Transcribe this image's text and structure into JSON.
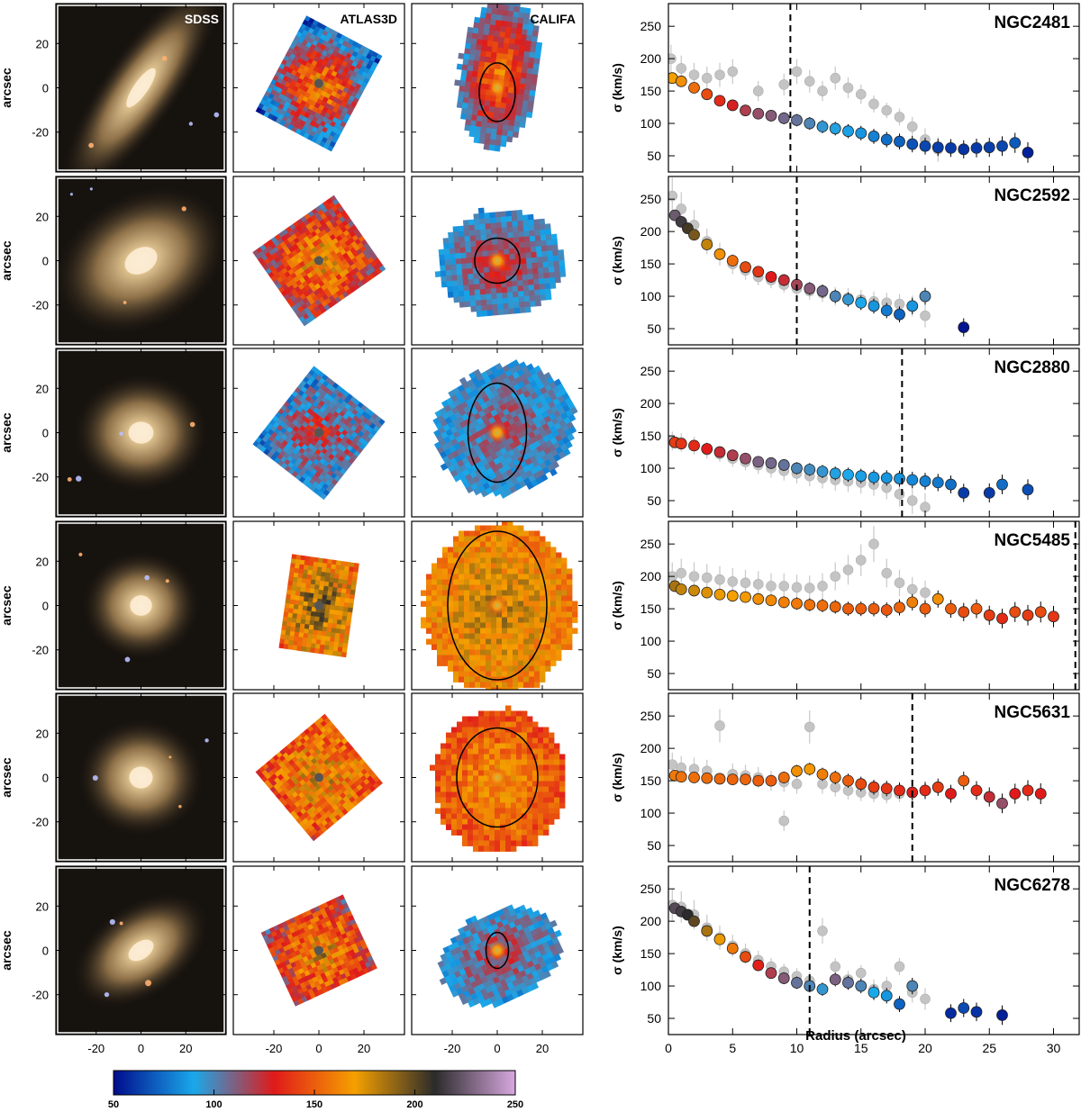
{
  "figure": {
    "column_titles": {
      "sdss": "SDSS",
      "atlas3d": "ATLAS3D",
      "califa": "CALIFA"
    },
    "row_ylabel": "arcsec",
    "map_xticks": [
      -20,
      0,
      20
    ],
    "map_yticks": [
      20,
      0,
      -20
    ],
    "colorbar": {
      "min": 50,
      "max": 250,
      "tick_labels": [
        "50",
        "100",
        "150",
        "200",
        "250"
      ],
      "stops": [
        "#000c8c",
        "#1aa8ea",
        "#e01a1a",
        "#f5a000",
        "#2b2b2b",
        "#d8a8e0"
      ]
    }
  },
  "chart_data": {
    "type": "scatter",
    "xlabel": "Radius (arcsec)",
    "ylabel": "σ (km/s)",
    "xlim": [
      0,
      32
    ],
    "ylim": [
      25,
      285
    ],
    "xticks": [
      0,
      5,
      10,
      15,
      20,
      25,
      30
    ],
    "yticks": [
      50,
      100,
      150,
      200,
      250
    ],
    "panels": [
      {
        "galaxy": "NGC2481",
        "vline": 9.5,
        "atlas3d": [
          [
            0.3,
            170
          ],
          [
            1,
            165
          ],
          [
            2,
            155
          ],
          [
            3,
            145
          ],
          [
            4,
            135
          ],
          [
            5,
            128
          ],
          [
            6,
            120
          ],
          [
            7,
            115
          ],
          [
            8,
            112
          ],
          [
            9,
            108
          ],
          [
            10,
            105
          ],
          [
            11,
            100
          ],
          [
            12,
            95
          ],
          [
            13,
            92
          ],
          [
            14,
            88
          ],
          [
            15,
            85
          ],
          [
            16,
            80
          ],
          [
            17,
            75
          ],
          [
            18,
            72
          ],
          [
            19,
            68
          ],
          [
            20,
            65
          ],
          [
            21,
            63
          ],
          [
            22,
            62
          ],
          [
            23,
            60
          ],
          [
            24,
            62
          ],
          [
            25,
            63
          ],
          [
            26,
            65
          ],
          [
            27,
            70
          ],
          [
            28,
            55
          ]
        ],
        "califa": [
          [
            0.2,
            200
          ],
          [
            1,
            185
          ],
          [
            2,
            175
          ],
          [
            3,
            170
          ],
          [
            4,
            175
          ],
          [
            5,
            180
          ],
          [
            7,
            150
          ],
          [
            9,
            160
          ],
          [
            10,
            180
          ],
          [
            11,
            165
          ],
          [
            12,
            150
          ],
          [
            13,
            170
          ],
          [
            14,
            155
          ],
          [
            15,
            145
          ],
          [
            16,
            130
          ],
          [
            17,
            120
          ],
          [
            18,
            110
          ],
          [
            19,
            95
          ],
          [
            20,
            75
          ],
          [
            21,
            60
          ]
        ]
      },
      {
        "galaxy": "NGC2592",
        "vline": 10,
        "atlas3d": [
          [
            0.5,
            225
          ],
          [
            1,
            215
          ],
          [
            1.5,
            205
          ],
          [
            2,
            195
          ],
          [
            3,
            180
          ],
          [
            4,
            165
          ],
          [
            5,
            155
          ],
          [
            6,
            145
          ],
          [
            7,
            138
          ],
          [
            8,
            130
          ],
          [
            9,
            125
          ],
          [
            10,
            118
          ],
          [
            11,
            112
          ],
          [
            12,
            108
          ],
          [
            13,
            100
          ],
          [
            14,
            95
          ],
          [
            15,
            90
          ],
          [
            16,
            85
          ],
          [
            17,
            78
          ],
          [
            18,
            72
          ],
          [
            19,
            85
          ],
          [
            20,
            100
          ],
          [
            23,
            52
          ]
        ],
        "califa": [
          [
            0.3,
            255
          ],
          [
            1,
            235
          ],
          [
            2,
            210
          ],
          [
            3,
            185
          ],
          [
            4,
            165
          ],
          [
            5,
            150
          ],
          [
            6,
            140
          ],
          [
            7,
            130
          ],
          [
            8,
            125
          ],
          [
            9,
            118
          ],
          [
            10,
            112
          ],
          [
            11,
            108
          ],
          [
            12,
            105
          ],
          [
            13,
            100
          ],
          [
            14,
            98
          ],
          [
            15,
            95
          ],
          [
            16,
            92
          ],
          [
            17,
            90
          ],
          [
            18,
            88
          ],
          [
            19,
            85
          ],
          [
            20,
            70
          ]
        ]
      },
      {
        "galaxy": "NGC2880",
        "vline": 18.2,
        "atlas3d": [
          [
            0.5,
            140
          ],
          [
            1,
            138
          ],
          [
            2,
            135
          ],
          [
            3,
            130
          ],
          [
            4,
            125
          ],
          [
            5,
            120
          ],
          [
            6,
            115
          ],
          [
            7,
            110
          ],
          [
            8,
            108
          ],
          [
            9,
            105
          ],
          [
            10,
            100
          ],
          [
            11,
            98
          ],
          [
            12,
            95
          ],
          [
            13,
            92
          ],
          [
            14,
            90
          ],
          [
            15,
            88
          ],
          [
            16,
            86
          ],
          [
            17,
            85
          ],
          [
            18,
            84
          ],
          [
            19,
            82
          ],
          [
            20,
            80
          ],
          [
            21,
            78
          ],
          [
            22,
            75
          ],
          [
            23,
            62
          ],
          [
            25,
            62
          ],
          [
            26,
            75
          ],
          [
            28,
            67
          ]
        ],
        "califa": [
          [
            0.3,
            142
          ],
          [
            1,
            140
          ],
          [
            2,
            135
          ],
          [
            3,
            128
          ],
          [
            4,
            122
          ],
          [
            5,
            115
          ],
          [
            6,
            110
          ],
          [
            7,
            105
          ],
          [
            8,
            100
          ],
          [
            9,
            96
          ],
          [
            10,
            92
          ],
          [
            11,
            88
          ],
          [
            12,
            85
          ],
          [
            13,
            82
          ],
          [
            14,
            80
          ],
          [
            15,
            78
          ],
          [
            16,
            75
          ],
          [
            17,
            70
          ],
          [
            18,
            60
          ],
          [
            19,
            50
          ],
          [
            20,
            40
          ]
        ]
      },
      {
        "galaxy": "NGC5485",
        "vline": 31.7,
        "atlas3d": [
          [
            0.5,
            185
          ],
          [
            1,
            180
          ],
          [
            2,
            178
          ],
          [
            3,
            175
          ],
          [
            4,
            172
          ],
          [
            5,
            170
          ],
          [
            6,
            168
          ],
          [
            7,
            165
          ],
          [
            8,
            163
          ],
          [
            9,
            160
          ],
          [
            10,
            158
          ],
          [
            11,
            156
          ],
          [
            12,
            155
          ],
          [
            13,
            153
          ],
          [
            14,
            150
          ],
          [
            15,
            150
          ],
          [
            16,
            150
          ],
          [
            17,
            148
          ],
          [
            18,
            152
          ],
          [
            19,
            160
          ],
          [
            20,
            150
          ],
          [
            21,
            165
          ],
          [
            22,
            150
          ],
          [
            23,
            145
          ],
          [
            24,
            150
          ],
          [
            25,
            140
          ],
          [
            26,
            135
          ],
          [
            27,
            145
          ],
          [
            28,
            140
          ],
          [
            29,
            145
          ],
          [
            30,
            138
          ]
        ],
        "califa": [
          [
            0.3,
            200
          ],
          [
            1,
            205
          ],
          [
            2,
            200
          ],
          [
            3,
            198
          ],
          [
            4,
            195
          ],
          [
            5,
            192
          ],
          [
            6,
            190
          ],
          [
            7,
            188
          ],
          [
            8,
            185
          ],
          [
            9,
            185
          ],
          [
            10,
            183
          ],
          [
            11,
            182
          ],
          [
            12,
            185
          ],
          [
            13,
            200
          ],
          [
            14,
            210
          ],
          [
            15,
            225
          ],
          [
            16,
            250
          ],
          [
            17,
            205
          ],
          [
            18,
            190
          ],
          [
            19,
            180
          ],
          [
            20,
            175
          ]
        ]
      },
      {
        "galaxy": "NGC5631",
        "vline": 19,
        "atlas3d": [
          [
            0.5,
            158
          ],
          [
            1,
            156
          ],
          [
            2,
            155
          ],
          [
            3,
            154
          ],
          [
            4,
            153
          ],
          [
            5,
            152
          ],
          [
            6,
            152
          ],
          [
            7,
            150
          ],
          [
            8,
            150
          ],
          [
            9,
            155
          ],
          [
            10,
            165
          ],
          [
            11,
            168
          ],
          [
            12,
            160
          ],
          [
            13,
            155
          ],
          [
            14,
            150
          ],
          [
            15,
            145
          ],
          [
            16,
            140
          ],
          [
            17,
            138
          ],
          [
            18,
            135
          ],
          [
            19,
            132
          ],
          [
            20,
            135
          ],
          [
            21,
            140
          ],
          [
            22,
            130
          ],
          [
            23,
            150
          ],
          [
            24,
            135
          ],
          [
            25,
            125
          ],
          [
            26,
            115
          ],
          [
            27,
            130
          ],
          [
            28,
            135
          ],
          [
            29,
            130
          ]
        ],
        "califa": [
          [
            0.3,
            175
          ],
          [
            1,
            170
          ],
          [
            2,
            168
          ],
          [
            3,
            165
          ],
          [
            4,
            235
          ],
          [
            5,
            160
          ],
          [
            6,
            158
          ],
          [
            7,
            155
          ],
          [
            8,
            150
          ],
          [
            9,
            148
          ],
          [
            10,
            145
          ],
          [
            11,
            233
          ],
          [
            12,
            145
          ],
          [
            13,
            140
          ],
          [
            14,
            135
          ],
          [
            15,
            132
          ],
          [
            16,
            130
          ],
          [
            17,
            128
          ],
          [
            18,
            130
          ],
          [
            19,
            132
          ],
          [
            20,
            135
          ],
          [
            9,
            88
          ]
        ]
      },
      {
        "galaxy": "NGC6278",
        "vline": 11,
        "atlas3d": [
          [
            0.5,
            220
          ],
          [
            1,
            215
          ],
          [
            1.5,
            210
          ],
          [
            2,
            200
          ],
          [
            3,
            185
          ],
          [
            4,
            172
          ],
          [
            5,
            158
          ],
          [
            6,
            145
          ],
          [
            7,
            132
          ],
          [
            8,
            120
          ],
          [
            9,
            112
          ],
          [
            10,
            105
          ],
          [
            11,
            100
          ],
          [
            12,
            95
          ],
          [
            13,
            110
          ],
          [
            14,
            105
          ],
          [
            15,
            100
          ],
          [
            16,
            90
          ],
          [
            17,
            85
          ],
          [
            18,
            72
          ],
          [
            19,
            100
          ],
          [
            22,
            58
          ],
          [
            23,
            66
          ],
          [
            24,
            60
          ],
          [
            26,
            55
          ]
        ],
        "califa": [
          [
            0.3,
            225
          ],
          [
            1,
            222
          ],
          [
            2,
            210
          ],
          [
            3,
            190
          ],
          [
            4,
            175
          ],
          [
            5,
            162
          ],
          [
            6,
            150
          ],
          [
            7,
            140
          ],
          [
            8,
            130
          ],
          [
            9,
            122
          ],
          [
            10,
            115
          ],
          [
            11,
            108
          ],
          [
            12,
            185
          ],
          [
            13,
            130
          ],
          [
            14,
            110
          ],
          [
            15,
            120
          ],
          [
            16,
            95
          ],
          [
            17,
            100
          ],
          [
            18,
            130
          ],
          [
            19,
            90
          ],
          [
            20,
            80
          ]
        ]
      }
    ]
  }
}
